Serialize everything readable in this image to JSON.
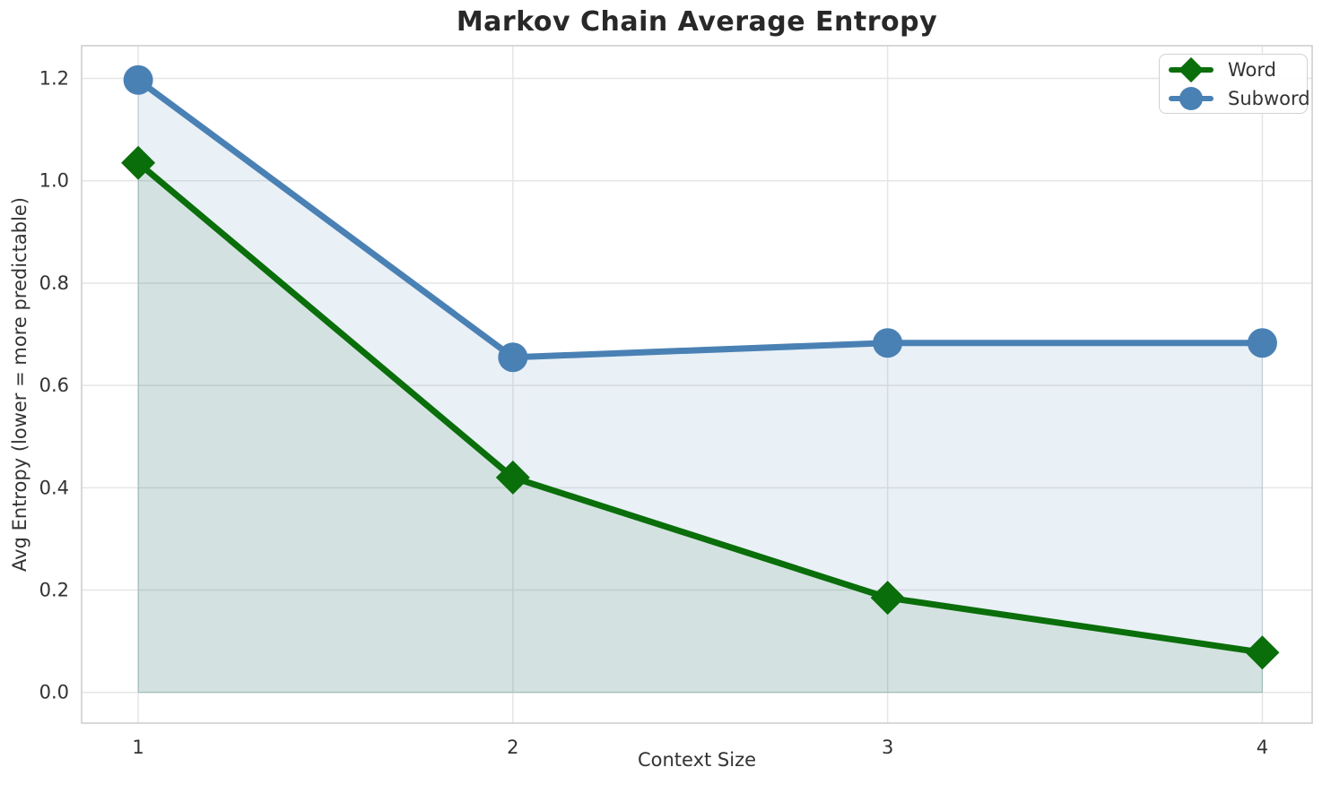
{
  "figure": {
    "title": "Markov Chain Average Entropy",
    "xlabel": "Context Size",
    "ylabel": "Avg Entropy (lower = more predictable)"
  },
  "chart_data": {
    "type": "line",
    "title": "Markov Chain Average Entropy",
    "xlabel": "Context Size",
    "ylabel": "Avg Entropy (lower = more predictable)",
    "x": [
      1,
      2,
      3,
      4
    ],
    "series": [
      {
        "name": "Word",
        "values": [
          1.035,
          0.42,
          0.185,
          0.078
        ],
        "color": "#0a6e0a",
        "marker": "diamond",
        "area_fill": true,
        "fill_alpha": 0.1
      },
      {
        "name": "Subword",
        "values": [
          1.197,
          0.655,
          0.683,
          0.683
        ],
        "color": "#4a81b4",
        "marker": "circle",
        "area_fill": true,
        "fill_alpha": 0.12
      }
    ],
    "xlim": [
      0.849,
      4.133
    ],
    "ylim": [
      -0.06,
      1.264
    ],
    "xticks": [
      1,
      2,
      3,
      4
    ],
    "yticks": [
      0.0,
      0.2,
      0.4,
      0.6,
      0.8,
      1.0,
      1.2
    ],
    "grid": true,
    "legend_position": "upper right"
  },
  "legend": {
    "items": [
      {
        "label": "Word"
      },
      {
        "label": "Subword"
      }
    ]
  },
  "style": {
    "grid_color": "#e6e6e6",
    "spine_color": "#cccccc",
    "tick_color": "#333333",
    "text_color": "#333333",
    "title_color": "#282828",
    "background": "#ffffff",
    "line_width": 7,
    "marker_size": 19
  }
}
